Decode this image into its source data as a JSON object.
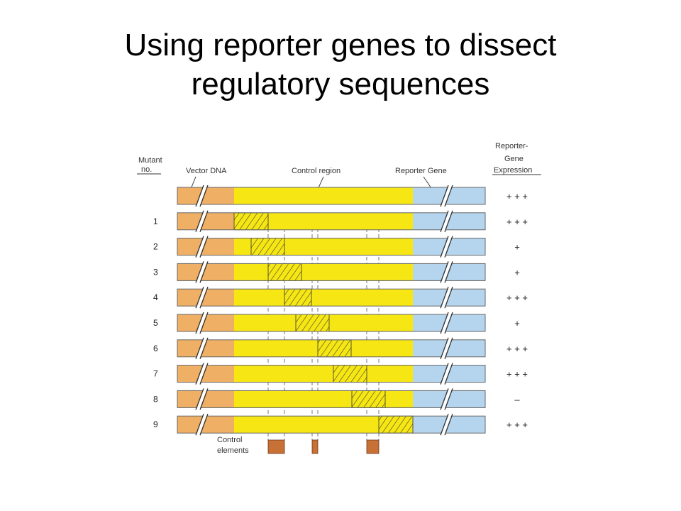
{
  "slide": {
    "title_line1": "Using reporter genes to dissect",
    "title_line2": "regulatory sequences"
  },
  "figure": {
    "header_mutant_line1": "Mutant",
    "header_mutant_line2": "no.",
    "label_vector": "Vector DNA",
    "label_control_region": "Control region",
    "label_reporter": "Reporter Gene",
    "header_expression_line1": "Reporter-",
    "header_expression_line2": "Gene",
    "header_expression_line3": "Expression",
    "label_control_elements_line1": "Control",
    "label_control_elements_line2": "elements",
    "rows": [
      {
        "mutant": "",
        "mutation_start": null,
        "expression": "+ + +"
      },
      {
        "mutant": "1",
        "mutation_start": 0,
        "expression": "+ + +"
      },
      {
        "mutant": "2",
        "mutation_start": 1,
        "expression": "+"
      },
      {
        "mutant": "3",
        "mutation_start": 2,
        "expression": "+"
      },
      {
        "mutant": "4",
        "mutation_start": 3,
        "expression": "+ + +"
      },
      {
        "mutant": "5",
        "mutation_start": 4,
        "expression": "+"
      },
      {
        "mutant": "6",
        "mutation_start": 5,
        "expression": "+ + +"
      },
      {
        "mutant": "7",
        "mutation_start": 6,
        "expression": "+ + +"
      },
      {
        "mutant": "8",
        "mutation_start": 7,
        "expression": "–"
      },
      {
        "mutant": "9",
        "mutation_start": 8,
        "expression": "+ + +"
      }
    ],
    "colors": {
      "vector": "#efb066",
      "control": "#f5e614",
      "reporter": "#b5d5ef",
      "element": "#c87137",
      "outline": "#666666"
    }
  }
}
